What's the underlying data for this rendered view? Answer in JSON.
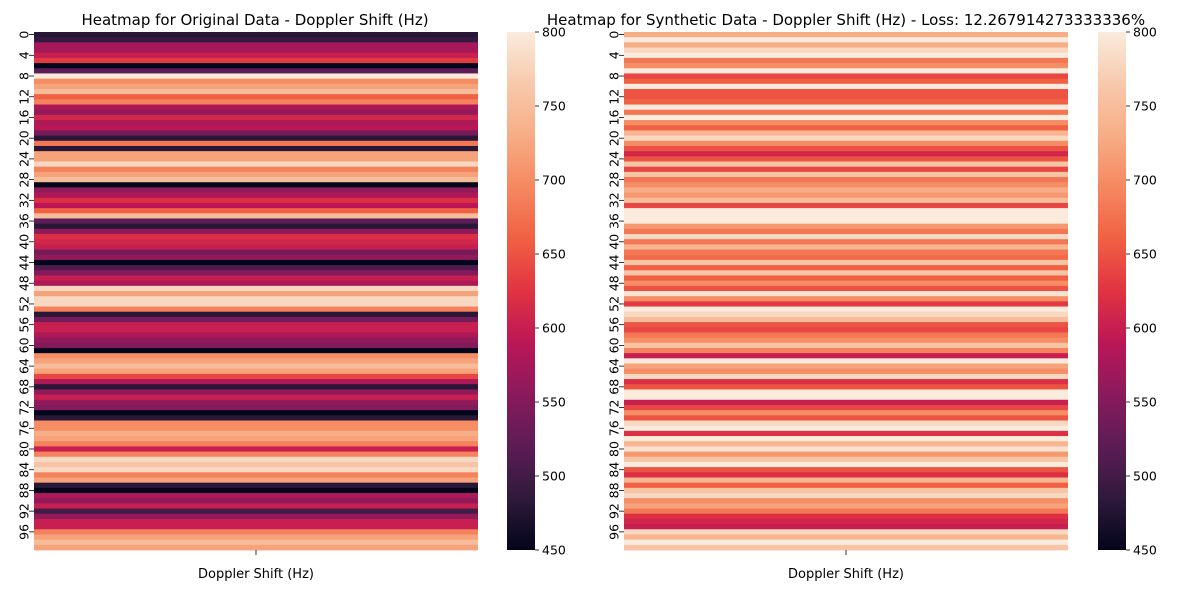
{
  "palette": [
    "#03051a",
    "#2f1a3c",
    "#5c1c55",
    "#8a1a5c",
    "#bb1756",
    "#e13342",
    "#f06043",
    "#f58860",
    "#f7ad85",
    "#f7c9ac",
    "#faebdd"
  ],
  "colorbar_range": [
    450,
    800
  ],
  "colorbar_ticks": [
    "450",
    "500",
    "550",
    "600",
    "650",
    "700",
    "750",
    "800"
  ],
  "row_tick_labels": [
    "0",
    "4",
    "8",
    "12",
    "16",
    "20",
    "24",
    "28",
    "32",
    "36",
    "40",
    "44",
    "48",
    "52",
    "56",
    "60",
    "64",
    "68",
    "72",
    "76",
    "80",
    "84",
    "88",
    "92",
    "96"
  ],
  "chart_data": [
    {
      "type": "heatmap",
      "title": "Heatmap for Original Data - Doppler Shift (Hz)",
      "xlabel": "Doppler Shift (Hz)",
      "ylabel": "",
      "rows": 100,
      "columns": 1,
      "vmin": 450,
      "vmax": 800,
      "values": [
        480,
        490,
        575,
        575,
        600,
        630,
        450,
        520,
        800,
        700,
        720,
        750,
        660,
        690,
        580,
        560,
        610,
        580,
        590,
        540,
        480,
        680,
        480,
        720,
        720,
        780,
        690,
        720,
        750,
        450,
        560,
        580,
        620,
        590,
        660,
        750,
        520,
        480,
        560,
        620,
        610,
        600,
        540,
        560,
        450,
        510,
        550,
        600,
        580,
        780,
        720,
        780,
        780,
        690,
        480,
        540,
        600,
        600,
        580,
        560,
        550,
        450,
        700,
        720,
        750,
        720,
        640,
        580,
        480,
        560,
        600,
        560,
        550,
        450,
        480,
        700,
        700,
        730,
        720,
        690,
        600,
        690,
        780,
        760,
        780,
        690,
        720,
        480,
        450,
        580,
        560,
        600,
        500,
        560,
        600,
        600,
        690,
        720,
        750,
        720
      ]
    },
    {
      "type": "heatmap",
      "title": "Heatmap for Synthetic Data - Doppler Shift (Hz) - Loss: 12.267914273333336%",
      "xlabel": "Doppler Shift (Hz)",
      "ylabel": "",
      "rows": 100,
      "columns": 1,
      "vmin": 450,
      "vmax": 800,
      "values": [
        730,
        800,
        730,
        780,
        800,
        680,
        700,
        800,
        640,
        660,
        800,
        650,
        650,
        660,
        800,
        680,
        800,
        700,
        660,
        740,
        780,
        700,
        650,
        610,
        650,
        760,
        640,
        760,
        680,
        700,
        730,
        710,
        750,
        640,
        800,
        800,
        800,
        710,
        680,
        780,
        680,
        740,
        680,
        670,
        760,
        660,
        760,
        660,
        700,
        650,
        790,
        700,
        630,
        800,
        780,
        750,
        650,
        640,
        680,
        700,
        760,
        690,
        600,
        800,
        720,
        700,
        780,
        620,
        650,
        800,
        800,
        600,
        640,
        700,
        650,
        780,
        800,
        620,
        800,
        740,
        790,
        710,
        760,
        800,
        650,
        620,
        740,
        660,
        760,
        780,
        700,
        720,
        680,
        620,
        610,
        600,
        780,
        740,
        800,
        760
      ]
    }
  ]
}
